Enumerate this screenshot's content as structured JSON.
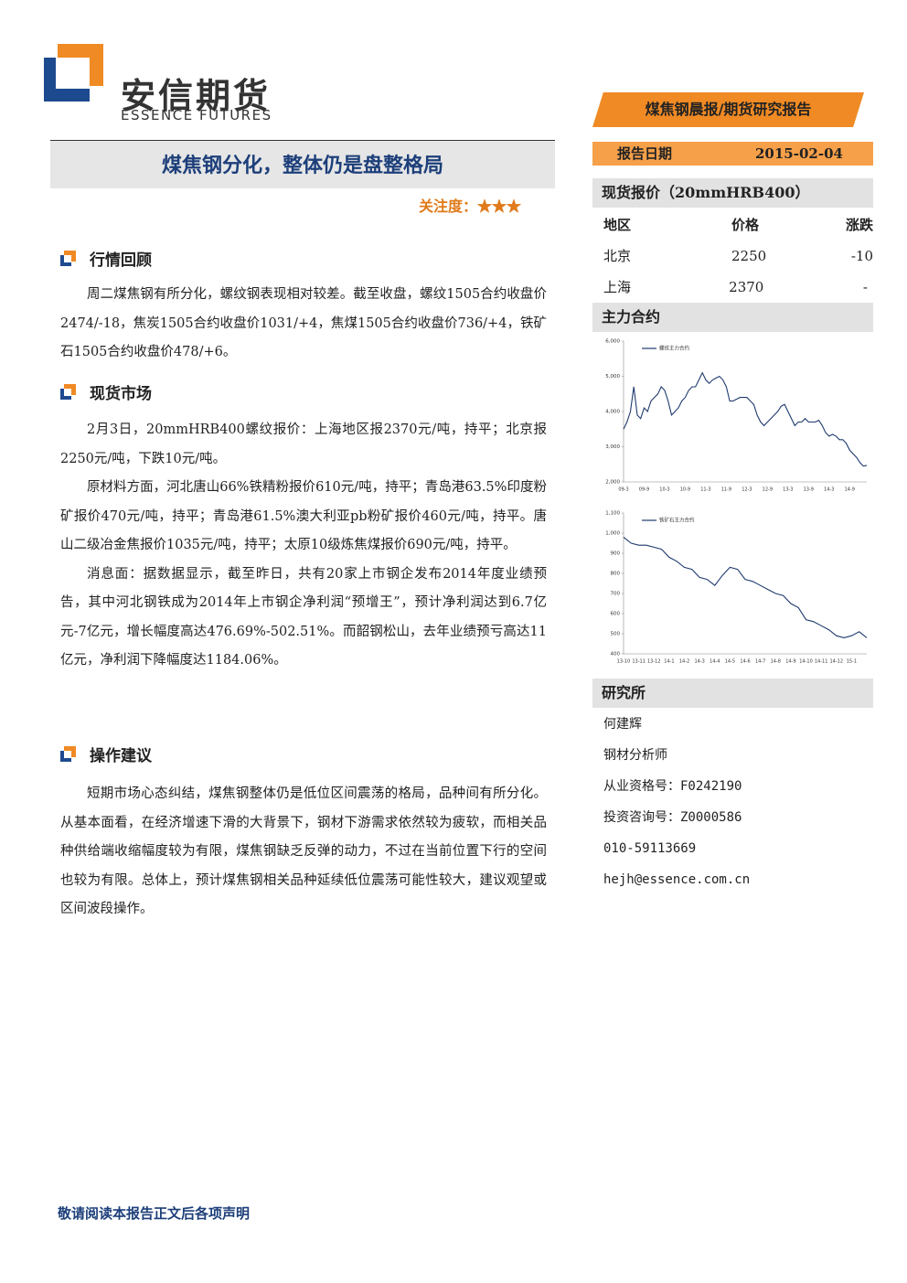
{
  "header": {
    "company_cn": "安信期货",
    "company_en": "ESSENCE FUTURES",
    "report_tag": "煤焦钢晨报/期货研究报告"
  },
  "report_date": {
    "label": "报告日期",
    "value": "2015-02-04"
  },
  "title": "煤焦钢分化，整体仍是盘整格局",
  "attention": {
    "label": "关注度：",
    "stars": "★★★"
  },
  "sections": [
    {
      "heading": "行情回顾",
      "paragraphs": [
        "周二煤焦钢有所分化，螺纹钢表现相对较差。截至收盘，螺纹1505合约收盘价2474/-18，焦炭1505合约收盘价1031/+4，焦煤1505合约收盘价736/+4，铁矿石1505合约收盘价478/+6。"
      ]
    },
    {
      "heading": "现货市场",
      "paragraphs": [
        "2月3日，20mmHRB400螺纹报价：上海地区报2370元/吨，持平；北京报2250元/吨，下跌10元/吨。",
        "原材料方面，河北唐山66%铁精粉报价610元/吨，持平；青岛港63.5%印度粉矿报价470元/吨，持平；青岛港61.5%澳大利亚pb粉矿报价460元/吨，持平。唐山二级冶金焦报价1035元/吨，持平；太原10级炼焦煤报价690元/吨，持平。",
        "消息面：据数据显示，截至昨日，共有20家上市钢企发布2014年度业绩预告，其中河北钢铁成为2014年上市钢企净利润“预增王”，预计净利润达到6.7亿元-7亿元，增长幅度高达476.69%-502.51%。而韶钢松山，去年业绩预亏高达11亿元，净利润下降幅度达1184.06%。"
      ]
    },
    {
      "heading": "操作建议",
      "paragraphs": [
        "短期市场心态纠结，煤焦钢整体仍是低位区间震荡的格局，品种间有所分化。从基本面看，在经济增速下滑的大背景下，钢材下游需求依然较为疲软，而相关品种供给端收缩幅度较为有限，煤焦钢缺乏反弹的动力，不过在当前位置下行的空间也较为有限。总体上，预计煤焦钢相关品种延续低位震荡可能性较大，建议观望或区间波段操作。"
      ]
    }
  ],
  "spot_price": {
    "heading": "现货报价（20mmHRB400）",
    "columns": [
      "地区",
      "价格",
      "涨跌"
    ],
    "rows": [
      [
        "北京",
        "2250",
        "-10"
      ],
      [
        "上海",
        "2370",
        "-"
      ]
    ]
  },
  "main_contracts": {
    "heading": "主力合约"
  },
  "chart_data": [
    {
      "type": "line",
      "categories": [
        "09-3",
        null,
        null,
        null,
        null,
        null,
        "09-9",
        null,
        null,
        null,
        null,
        null,
        "10-3",
        null,
        null,
        null,
        null,
        null,
        "10-9",
        null,
        null,
        null,
        null,
        null,
        "11-3",
        null,
        null,
        null,
        null,
        null,
        "11-9",
        null,
        null,
        null,
        null,
        null,
        "12-3",
        null,
        null,
        null,
        null,
        null,
        "12-9",
        null,
        null,
        null,
        null,
        null,
        "13-3",
        null,
        null,
        null,
        null,
        null,
        "13-9",
        null,
        null,
        null,
        null,
        null,
        "14-3",
        null,
        null,
        null,
        null,
        null,
        "14-9",
        null,
        null,
        null,
        null,
        null
      ],
      "series": [
        {
          "name": "螺纹主力合约",
          "color": "#1f3a6e",
          "values": [
            3500,
            3700,
            4000,
            4700,
            3900,
            3800,
            4100,
            4000,
            4300,
            4400,
            4500,
            4700,
            4600,
            4300,
            3900,
            4000,
            4100,
            4300,
            4400,
            4600,
            4700,
            4700,
            4900,
            5100,
            4900,
            4800,
            4900,
            4950,
            5000,
            4900,
            4700,
            4300,
            4300,
            4350,
            4400,
            4400,
            4400,
            4300,
            4200,
            3900,
            3700,
            3600,
            3700,
            3800,
            3900,
            4000,
            4150,
            4200,
            4000,
            3800,
            3600,
            3700,
            3700,
            3800,
            3700,
            3700,
            3700,
            3750,
            3600,
            3400,
            3300,
            3350,
            3300,
            3200,
            3200,
            3100,
            2900,
            2800,
            2700,
            2550,
            2450,
            2470
          ]
        }
      ],
      "ylim": [
        2000,
        6000
      ],
      "yticks": [
        {
          "value": 2000,
          "label": "2,000"
        },
        {
          "value": 3000,
          "label": "3,000"
        },
        {
          "value": 4000,
          "label": "4,000"
        },
        {
          "value": 5000,
          "label": "5,000"
        },
        {
          "value": 6000,
          "label": "6,000"
        }
      ]
    },
    {
      "type": "line",
      "categories": [
        "13-10",
        null,
        "13-11",
        null,
        "13-12",
        null,
        "14-1",
        null,
        "14-2",
        null,
        "14-3",
        null,
        "14-4",
        null,
        "14-5",
        null,
        "14-6",
        null,
        "14-7",
        null,
        "14-8",
        null,
        "14-9",
        null,
        "14-10",
        null,
        "14-11",
        null,
        "14-12",
        null,
        "15-1",
        null,
        null
      ],
      "series": [
        {
          "name": "铁矿石主力合约",
          "color": "#1f3a6e",
          "values": [
            980,
            950,
            940,
            940,
            930,
            920,
            880,
            860,
            830,
            820,
            780,
            770,
            740,
            790,
            830,
            820,
            770,
            760,
            740,
            720,
            700,
            690,
            650,
            630,
            570,
            560,
            540,
            520,
            490,
            480,
            490,
            510,
            480
          ]
        }
      ],
      "ylim": [
        400,
        1100
      ],
      "yticks": [
        400,
        500,
        600,
        700,
        800,
        900,
        {
          "value": 1000,
          "label": "1,000"
        },
        {
          "value": 1100,
          "label": "1,100"
        }
      ]
    }
  ],
  "research": {
    "heading": "研究所",
    "lines": [
      "何建辉",
      "钢材分析师",
      "从业资格号：F0242190",
      "投资咨询号：Z0000586",
      "010-59113669",
      "hejh@essence.com.cn"
    ]
  },
  "footer": "敬请阅读本报告正文后各项声明"
}
